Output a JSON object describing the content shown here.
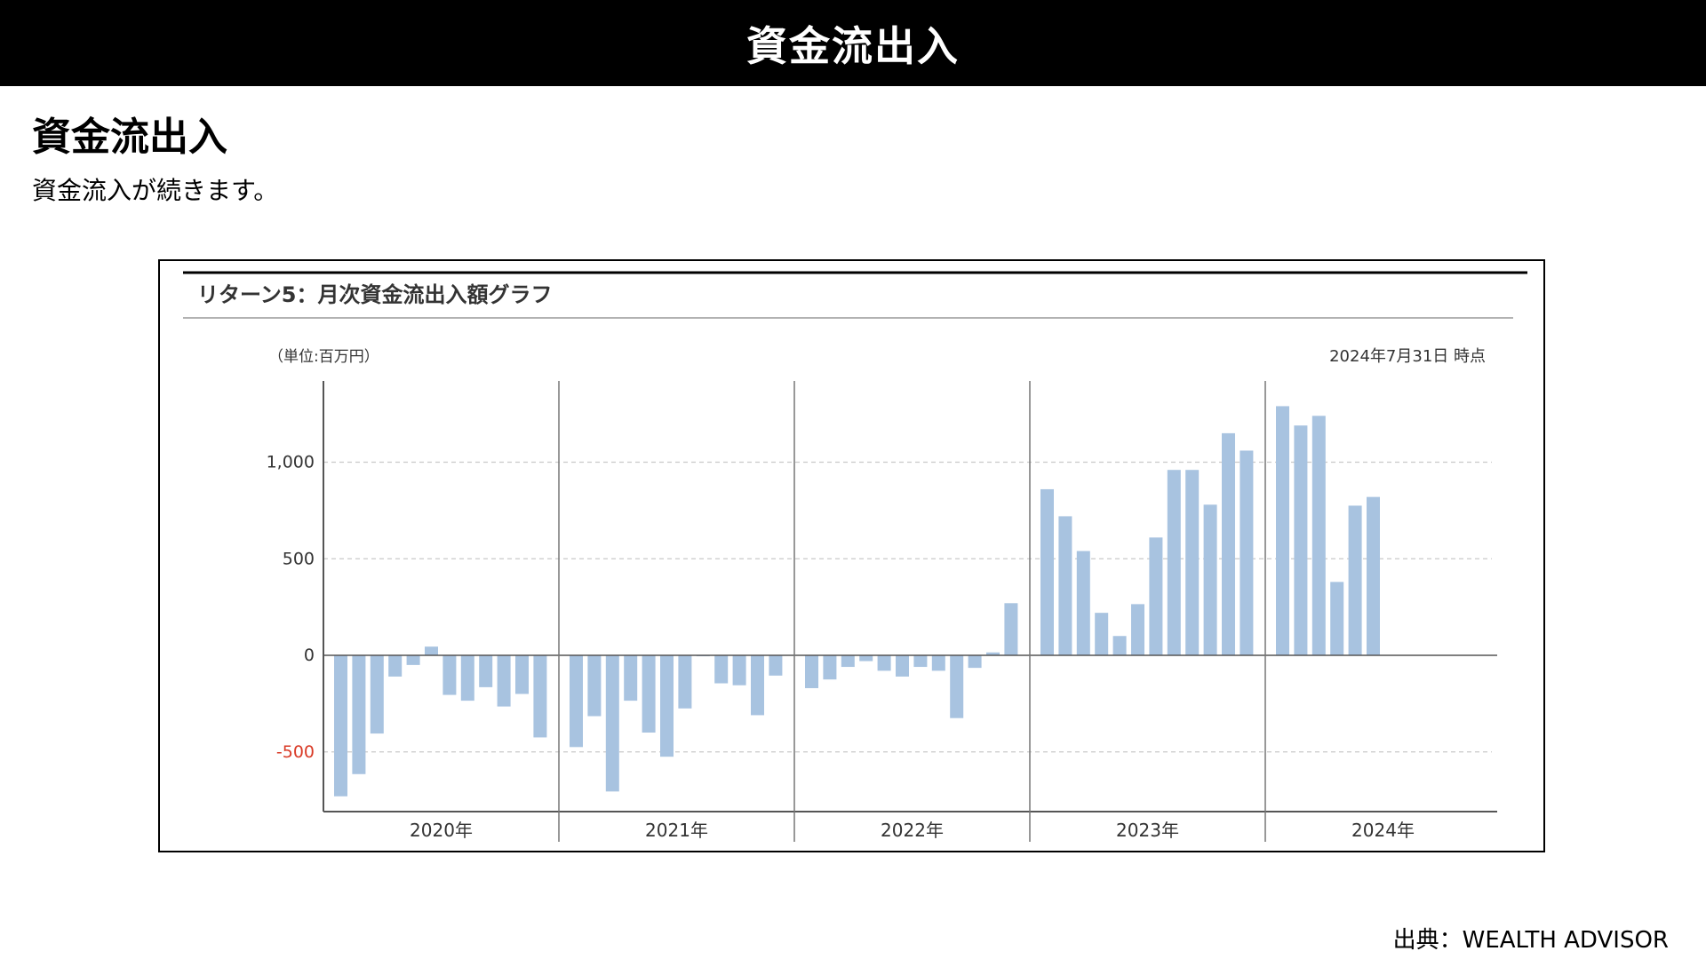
{
  "banner": {
    "title": "資金流出入"
  },
  "section": {
    "heading": "資金流出入",
    "subtext": "資金流入が続きます。"
  },
  "source": "出典：WEALTH ADVISOR",
  "colors": {
    "bar": "#a8c3e0",
    "negative_label": "#d93a26",
    "grid": "#c9c9c9",
    "axis": "#555555"
  },
  "chart_data": {
    "type": "bar",
    "title": "リターン5：月次資金流出入額グラフ",
    "unit_label": "（単位:百万円）",
    "as_of": "2024年7月31日 時点",
    "ylim": [
      -800,
      1400
    ],
    "yticks": [
      "1,000",
      "500",
      "0",
      "-500"
    ],
    "ytick_values": [
      1000,
      500,
      0,
      -500
    ],
    "grid": "horizontal dashed",
    "year_labels": [
      "2020年",
      "2021年",
      "2022年",
      "2023年",
      "2024年"
    ],
    "series": [
      {
        "values": [
          -730,
          -615,
          -405,
          -110,
          -50,
          45,
          -205,
          -235,
          -165,
          -265,
          -200,
          -425,
          -475,
          -315,
          -705,
          -235,
          -400,
          -525,
          -275,
          -5,
          -145,
          -155,
          -310,
          -105,
          -170,
          -125,
          -60,
          -30,
          -80,
          -110,
          -60,
          -80,
          -325,
          -65,
          15,
          270,
          860,
          720,
          540,
          220,
          100,
          265,
          610,
          960,
          960,
          780,
          1150,
          1060,
          1290,
          1190,
          1240,
          380,
          775,
          820
        ]
      }
    ]
  }
}
